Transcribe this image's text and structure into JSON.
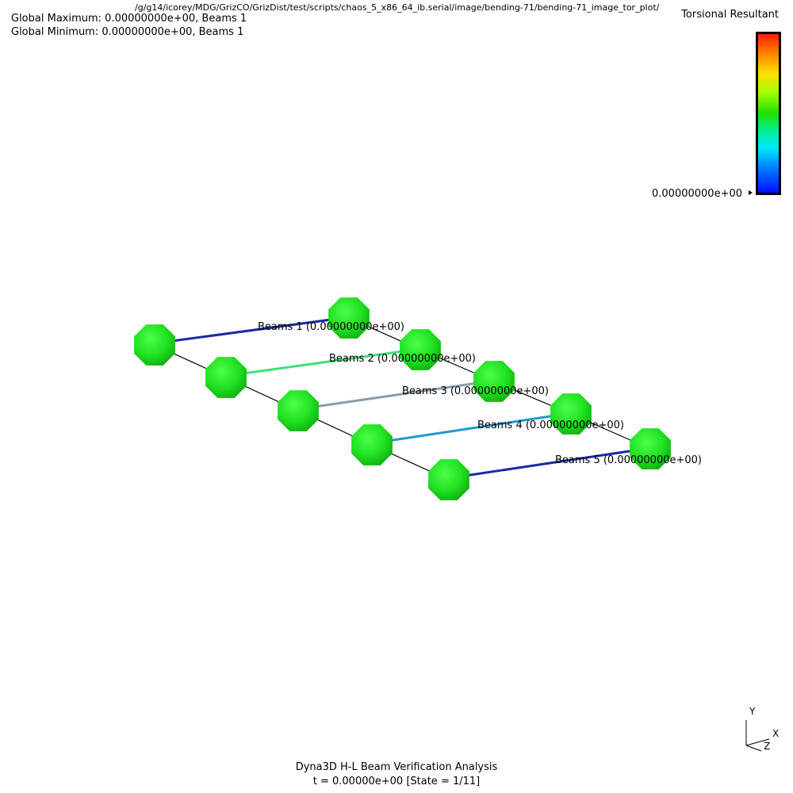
{
  "header": {
    "path": "/g/g14/icorey/MDG/GrizCO/GrizDist/test/scripts/chaos_5_x86_64_ib.serial/image/bending-71/bending-71_image_tor_plot/",
    "global_maximum": "Global Maximum: 0.00000000e+00, Beams 1",
    "global_minimum": "Global Minimum: 0.00000000e+00, Beams 1"
  },
  "legend": {
    "title": "Torsional Resultant",
    "min_value": "0.00000000e+00",
    "gradient_colors": [
      "#ff2000",
      "#ff8000",
      "#ffe000",
      "#a0ff00",
      "#20e000",
      "#00f0a0",
      "#00e8ff",
      "#0080ff",
      "#0010ff"
    ]
  },
  "beams": [
    {
      "label": "Beams 1 (0.00000000e+00)",
      "color": "#1a2aa8"
    },
    {
      "label": "Beams 2 (0.00000000e+00)",
      "color": "#3fe07a"
    },
    {
      "label": "Beams 3 (0.00000000e+00)",
      "color": "#8a9aa8"
    },
    {
      "label": "Beams 4 (0.00000000e+00)",
      "color": "#1a9ad0"
    },
    {
      "label": "Beams 5 (0.00000000e+00)",
      "color": "#1a2aa8"
    }
  ],
  "node_color": "#20e020",
  "axes": {
    "x": "X",
    "y": "Y",
    "z": "Z"
  },
  "caption": {
    "line1": "Dyna3D H-L Beam Verification Analysis",
    "line2": "t = 0.00000e+00 [State = 1/11]"
  }
}
